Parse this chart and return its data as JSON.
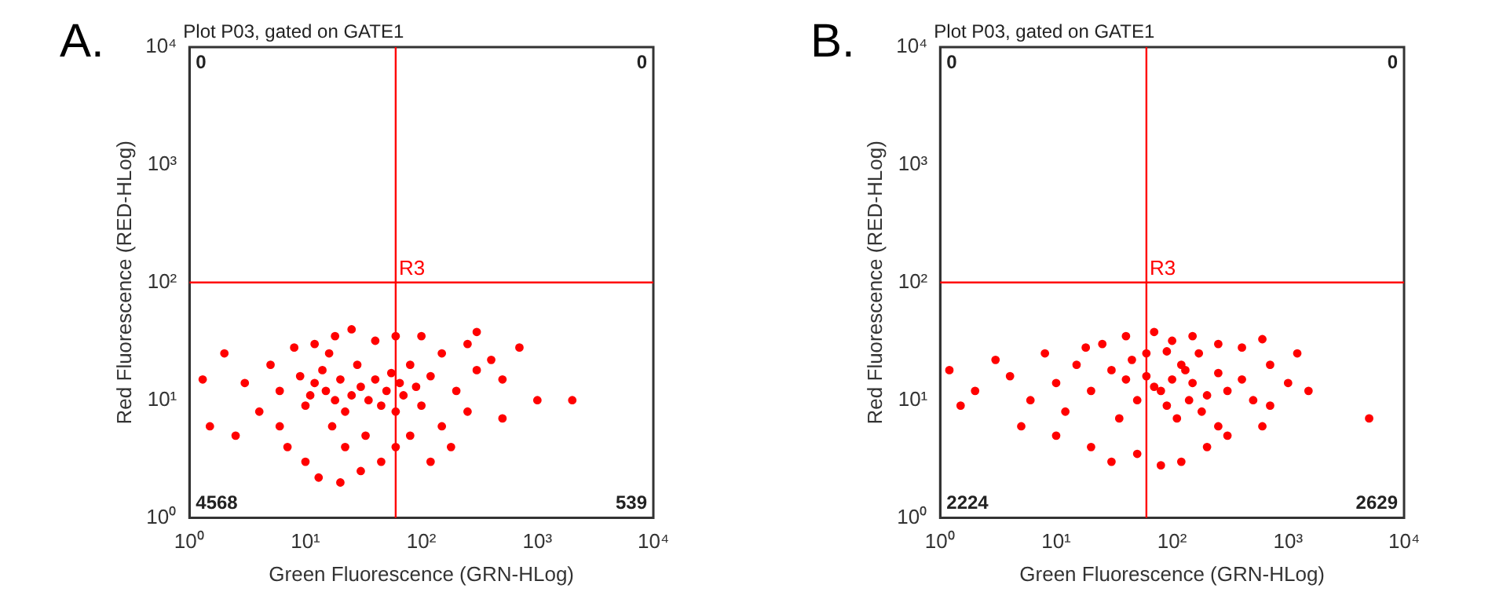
{
  "chart_data": [
    {
      "type": "scatter",
      "title": "A.",
      "subtitle": "Plot P03, gated on GATE1",
      "xlabel": "Green Fluorescence (GRN-HLog)",
      "ylabel": "Red Fluorescence (RED-HLog)",
      "log": "xy",
      "grid": false,
      "legend": false,
      "marker": "circle",
      "xlim": [
        1,
        10000
      ],
      "ylim": [
        1,
        10000
      ],
      "xticks": [
        {
          "value": 1,
          "label": "10⁰"
        },
        {
          "value": 10,
          "label": "10¹"
        },
        {
          "value": 100,
          "label": "10²"
        },
        {
          "value": 1000,
          "label": "10³"
        },
        {
          "value": 10000,
          "label": "10⁴"
        }
      ],
      "yticks": [
        {
          "value": 1,
          "label": "10⁰"
        },
        {
          "value": 10,
          "label": "10¹"
        },
        {
          "value": 100,
          "label": "10²"
        },
        {
          "value": 1000,
          "label": "10³"
        },
        {
          "value": 10000,
          "label": "10⁴"
        }
      ],
      "ref_lines": [
        {
          "axis": "x",
          "value": 60,
          "color": "#ff0000"
        },
        {
          "axis": "y",
          "value": 100,
          "label": "R3",
          "color": "#ff0000"
        }
      ],
      "annotations": [
        "0",
        "0",
        "4568",
        "539"
      ],
      "series": [
        {
          "color": "#ff0000",
          "x": [
            15,
            18,
            12,
            20,
            25,
            10,
            22,
            30,
            14,
            17,
            35,
            40,
            28,
            11,
            9,
            45,
            50,
            55,
            60,
            65,
            70,
            80,
            90,
            100,
            120,
            150,
            200,
            250,
            300,
            400,
            500,
            700,
            1000,
            2000,
            6,
            5,
            4,
            3,
            2,
            1.3,
            1.5,
            2.5,
            7,
            10,
            13,
            20,
            30,
            45,
            60,
            80,
            150,
            18,
            25,
            12,
            40,
            8,
            60,
            100,
            300,
            22,
            16,
            33,
            6,
            250,
            500,
            180,
            120
          ],
          "values": [
            12,
            10,
            14,
            15,
            11,
            9,
            8,
            13,
            18,
            6,
            10,
            15,
            20,
            11,
            16,
            9,
            12,
            17,
            8,
            14,
            11,
            20,
            13,
            9,
            16,
            25,
            12,
            30,
            18,
            22,
            15,
            28,
            10,
            10,
            12,
            20,
            8,
            14,
            25,
            15,
            6,
            5,
            4,
            3,
            2.2,
            2,
            2.5,
            3,
            4,
            5,
            6,
            35,
            40,
            30,
            32,
            28,
            35,
            35,
            38,
            4,
            25,
            5,
            6,
            8,
            7,
            4,
            3
          ]
        }
      ]
    },
    {
      "type": "scatter",
      "title": "B.",
      "subtitle": "Plot P03, gated on GATE1",
      "xlabel": "Green Fluorescence (GRN-HLog)",
      "ylabel": "Red Fluorescence (RED-HLog)",
      "log": "xy",
      "grid": false,
      "legend": false,
      "marker": "circle",
      "xlim": [
        1,
        10000
      ],
      "ylim": [
        1,
        10000
      ],
      "xticks": [
        {
          "value": 1,
          "label": "10⁰"
        },
        {
          "value": 10,
          "label": "10¹"
        },
        {
          "value": 100,
          "label": "10²"
        },
        {
          "value": 1000,
          "label": "10³"
        },
        {
          "value": 10000,
          "label": "10⁴"
        }
      ],
      "yticks": [
        {
          "value": 1,
          "label": "10⁰"
        },
        {
          "value": 10,
          "label": "10¹"
        },
        {
          "value": 100,
          "label": "10²"
        },
        {
          "value": 1000,
          "label": "10³"
        },
        {
          "value": 10000,
          "label": "10⁴"
        }
      ],
      "ref_lines": [
        {
          "axis": "x",
          "value": 60,
          "color": "#ff0000"
        },
        {
          "axis": "y",
          "value": 100,
          "label": "R3",
          "color": "#ff0000"
        }
      ],
      "annotations": [
        "0",
        "0",
        "2224",
        "2629"
      ],
      "series": [
        {
          "color": "#ff0000",
          "x": [
            100,
            130,
            80,
            150,
            60,
            200,
            120,
            90,
            70,
            250,
            300,
            50,
            40,
            30,
            170,
            110,
            140,
            400,
            500,
            700,
            1000,
            1500,
            5000,
            20,
            15,
            10,
            8,
            6,
            4,
            3,
            2,
            1.2,
            1.5,
            5,
            10,
            20,
            30,
            50,
            80,
            120,
            200,
            300,
            600,
            25,
            40,
            70,
            100,
            150,
            250,
            400,
            600,
            60,
            35,
            45,
            180,
            90,
            700,
            1200,
            12,
            18,
            250
          ],
          "values": [
            15,
            18,
            12,
            14,
            16,
            11,
            20,
            9,
            13,
            17,
            12,
            10,
            15,
            18,
            25,
            7,
            10,
            15,
            10,
            20,
            14,
            12,
            7,
            12,
            20,
            14,
            25,
            10,
            16,
            22,
            12,
            18,
            9,
            6,
            5,
            4,
            3,
            3.5,
            2.8,
            3,
            4,
            5,
            6,
            30,
            35,
            38,
            32,
            35,
            30,
            28,
            33,
            25,
            7,
            22,
            8,
            26,
            9,
            25,
            8,
            28,
            6
          ]
        }
      ]
    }
  ]
}
